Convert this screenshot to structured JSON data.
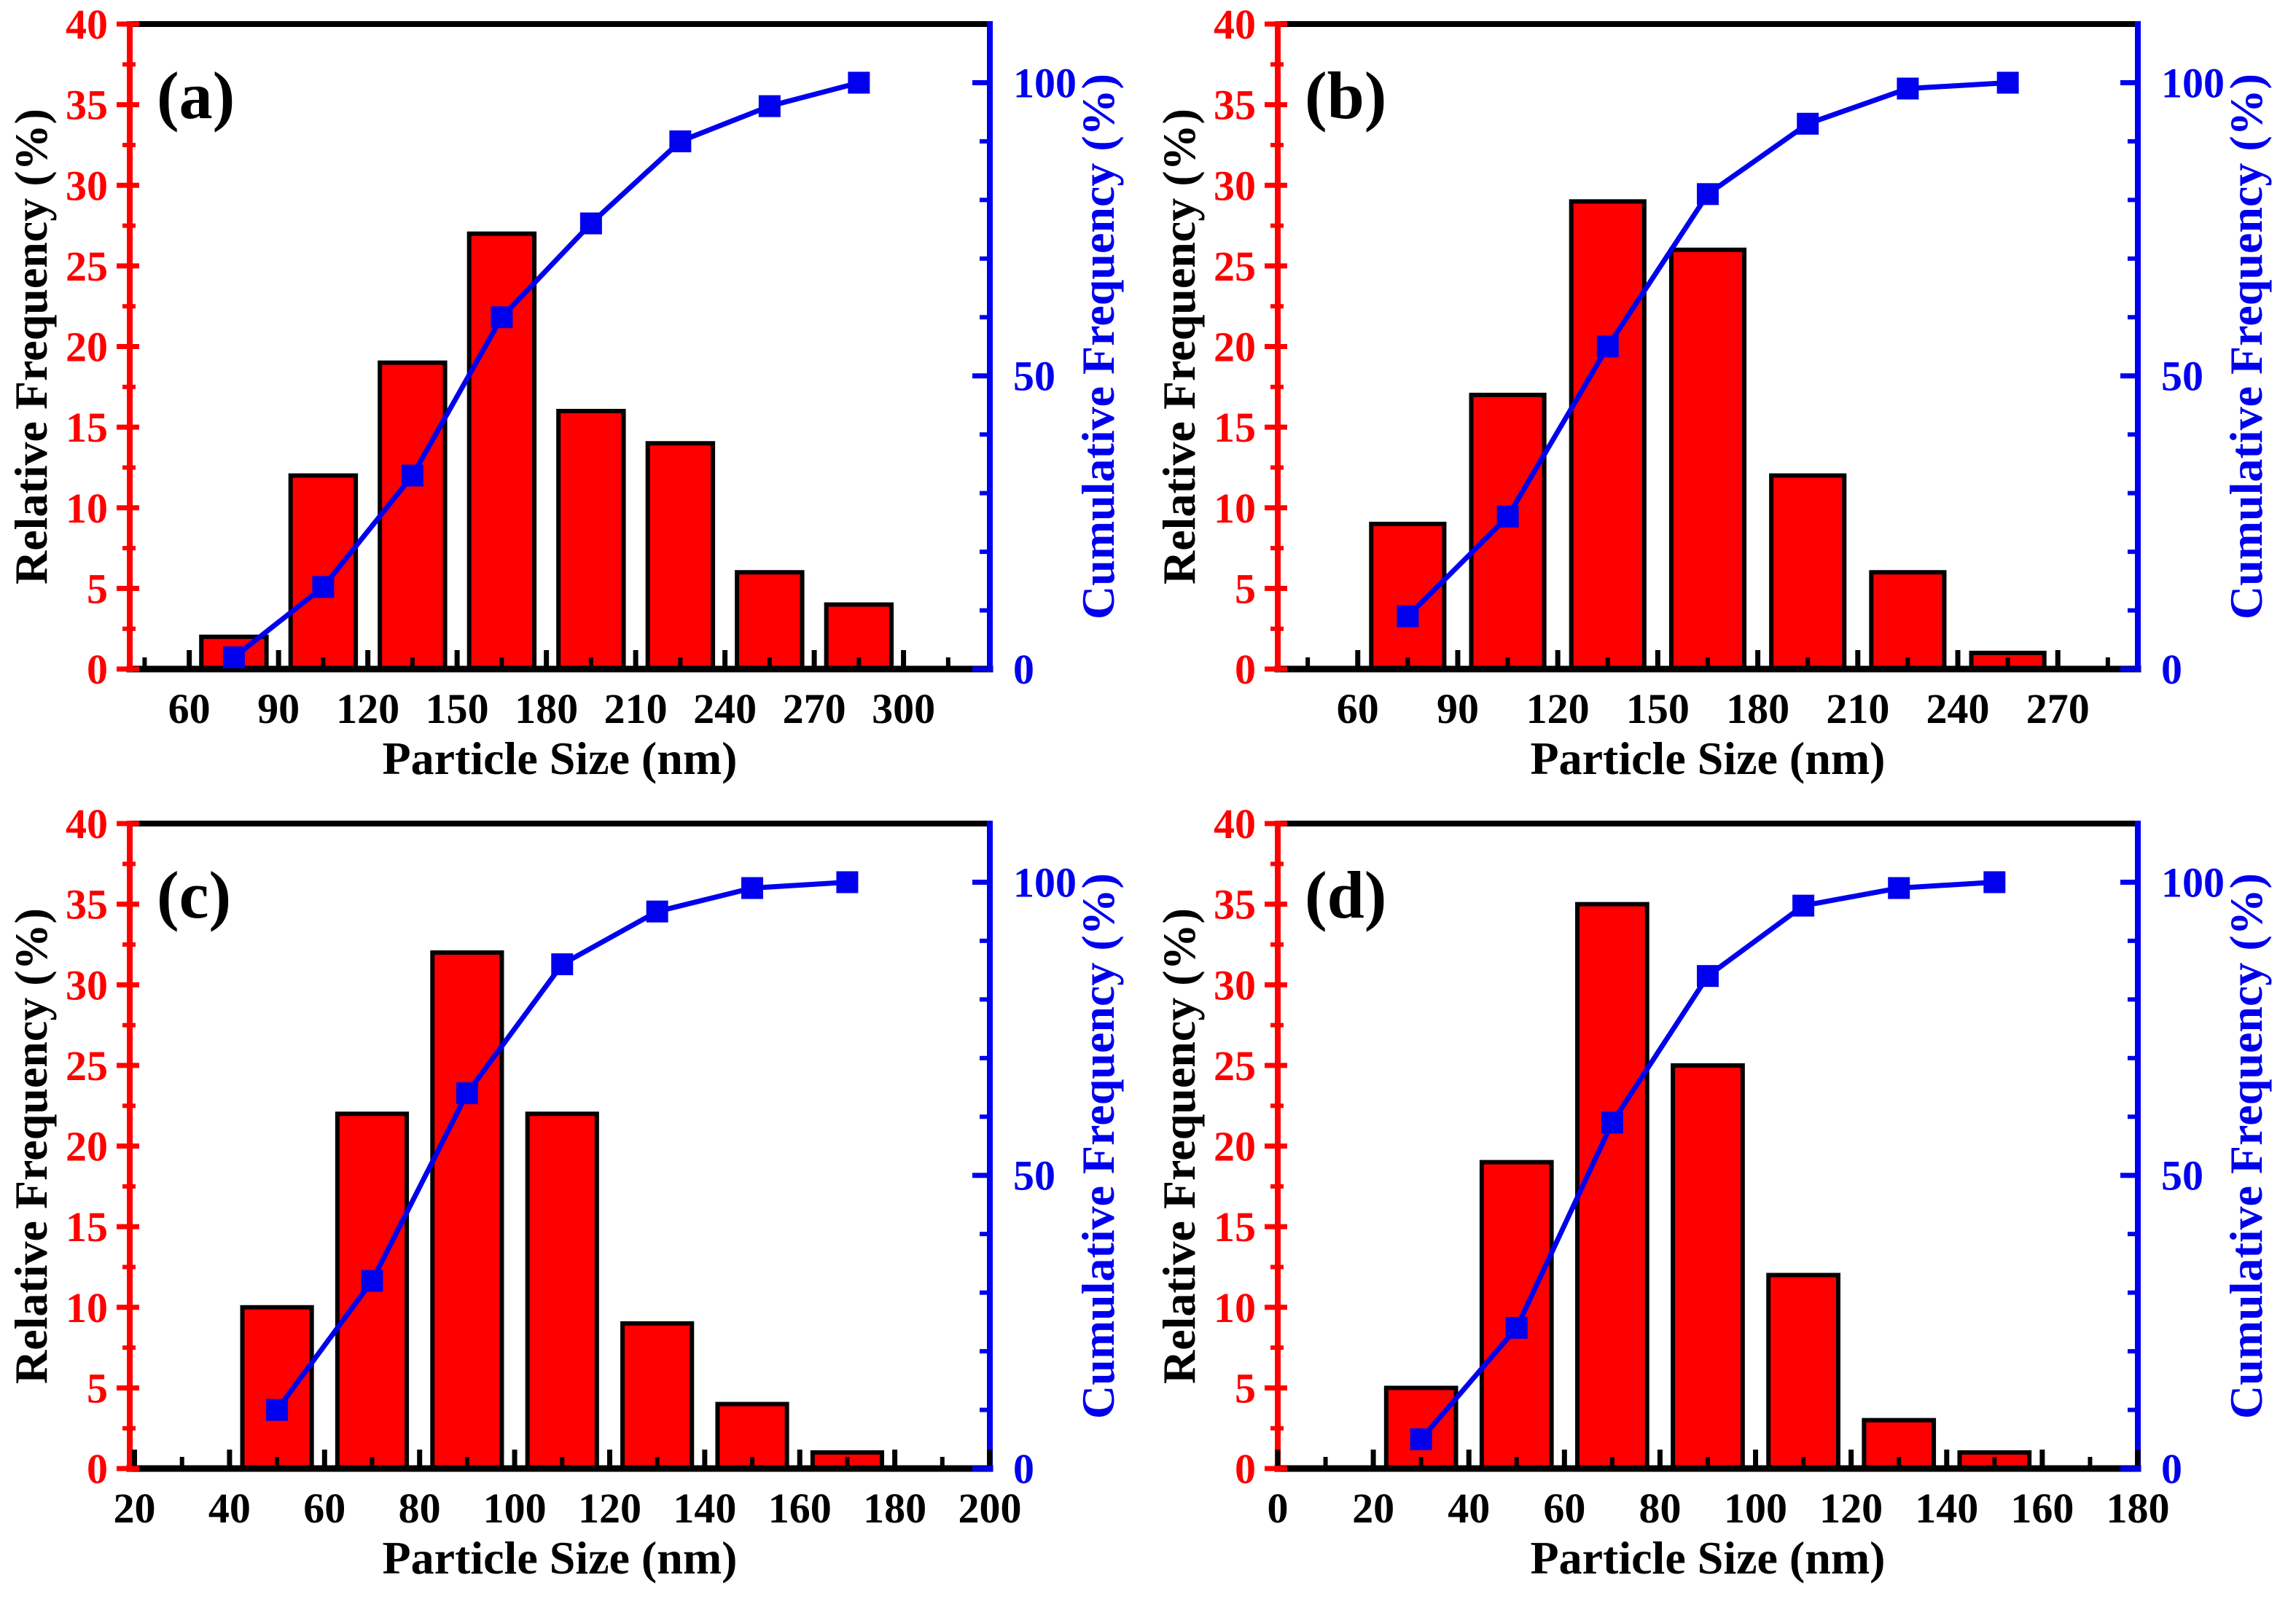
{
  "figure": {
    "background": "#ffffff",
    "description": "2x2 grid of particle size distribution histograms with cumulative frequency curves"
  },
  "shared": {
    "x_axis_title": "Particle Size (nm)",
    "left_axis_title": "Relative Frequency (%)",
    "right_axis_title": "Cumulative Frequency (%)",
    "left_ylim": [
      0,
      40
    ],
    "right_ylim": [
      0,
      110
    ],
    "left_major_ticks": [
      0,
      5,
      10,
      15,
      20,
      25,
      30,
      35,
      40
    ],
    "left_minor_ticks": [
      2.5,
      7.5,
      12.5,
      17.5,
      22.5,
      27.5,
      32.5,
      37.5
    ],
    "right_major_ticks": [
      0,
      50,
      100
    ],
    "right_minor_ticks": [
      10,
      20,
      30,
      40,
      60,
      70,
      80,
      90
    ],
    "colors": {
      "bar_fill": "#ff0000",
      "bar_edge": "#000000",
      "line": "#0000ee",
      "marker": "#0000ee",
      "left_axis": "#ff0000",
      "right_axis": "#0000ee",
      "bottom_axis": "#000000",
      "top_axis": "#000000",
      "black_text": "#000000"
    }
  },
  "chart_data": [
    {
      "type": "bar+line",
      "panel_label": "(a)",
      "xlabel": "Particle Size (nm)",
      "ylabel_left": "Relative Frequency (%)",
      "ylabel_right": "Cumulative Frequency (%)",
      "xlim": [
        40,
        329
      ],
      "x_major_ticks": [
        60,
        90,
        120,
        150,
        180,
        210,
        240,
        270,
        300
      ],
      "x_minor_ticks": [
        45,
        75,
        105,
        135,
        165,
        195,
        225,
        255,
        285,
        315
      ],
      "bin_width": 30,
      "bin_centers": [
        75,
        105,
        135,
        165,
        195,
        225,
        255,
        285
      ],
      "relative_frequency": [
        2,
        12,
        19,
        27,
        16,
        14,
        6,
        4
      ],
      "cumulative_frequency": [
        2,
        14,
        33,
        60,
        76,
        90,
        96,
        100
      ]
    },
    {
      "type": "bar+line",
      "panel_label": "(b)",
      "xlabel": "Particle Size (nm)",
      "ylabel_left": "Relative Frequency (%)",
      "ylabel_right": "Cumulative Frequency (%)",
      "xlim": [
        36,
        294
      ],
      "x_major_ticks": [
        60,
        90,
        120,
        150,
        180,
        210,
        240,
        270
      ],
      "x_minor_ticks": [
        45,
        75,
        105,
        135,
        165,
        195,
        225,
        255,
        285
      ],
      "bin_width": 30,
      "bin_centers": [
        75,
        105,
        135,
        165,
        195,
        225,
        255
      ],
      "relative_frequency": [
        9,
        17,
        29,
        26,
        12,
        6,
        1
      ],
      "cumulative_frequency": [
        9,
        26,
        55,
        81,
        93,
        99,
        100
      ]
    },
    {
      "type": "bar+line",
      "panel_label": "(c)",
      "xlabel": "Particle Size (nm)",
      "ylabel_left": "Relative Frequency (%)",
      "ylabel_right": "Cumulative Frequency (%)",
      "xlim": [
        19,
        200
      ],
      "x_major_ticks": [
        20,
        40,
        60,
        80,
        100,
        120,
        140,
        160,
        180,
        200
      ],
      "x_minor_ticks": [
        30,
        50,
        70,
        90,
        110,
        130,
        150,
        170,
        190
      ],
      "bin_width": 20,
      "bin_centers": [
        50,
        70,
        90,
        110,
        130,
        150,
        170
      ],
      "relative_frequency": [
        10,
        22,
        32,
        22,
        9,
        4,
        1
      ],
      "cumulative_frequency": [
        10,
        32,
        64,
        86,
        95,
        99,
        100
      ]
    },
    {
      "type": "bar+line",
      "panel_label": "(d)",
      "xlabel": "Particle Size (nm)",
      "ylabel_left": "Relative Frequency (%)",
      "ylabel_right": "Cumulative Frequency (%)",
      "xlim": [
        0,
        180
      ],
      "x_major_ticks": [
        0,
        20,
        40,
        60,
        80,
        100,
        120,
        140,
        160,
        180
      ],
      "x_minor_ticks": [
        10,
        30,
        50,
        70,
        90,
        110,
        130,
        150,
        170
      ],
      "bin_width": 20,
      "bin_centers": [
        30,
        50,
        70,
        90,
        110,
        130,
        150
      ],
      "relative_frequency": [
        5,
        19,
        35,
        25,
        12,
        3,
        1
      ],
      "cumulative_frequency": [
        5,
        24,
        59,
        84,
        96,
        99,
        100
      ]
    }
  ]
}
